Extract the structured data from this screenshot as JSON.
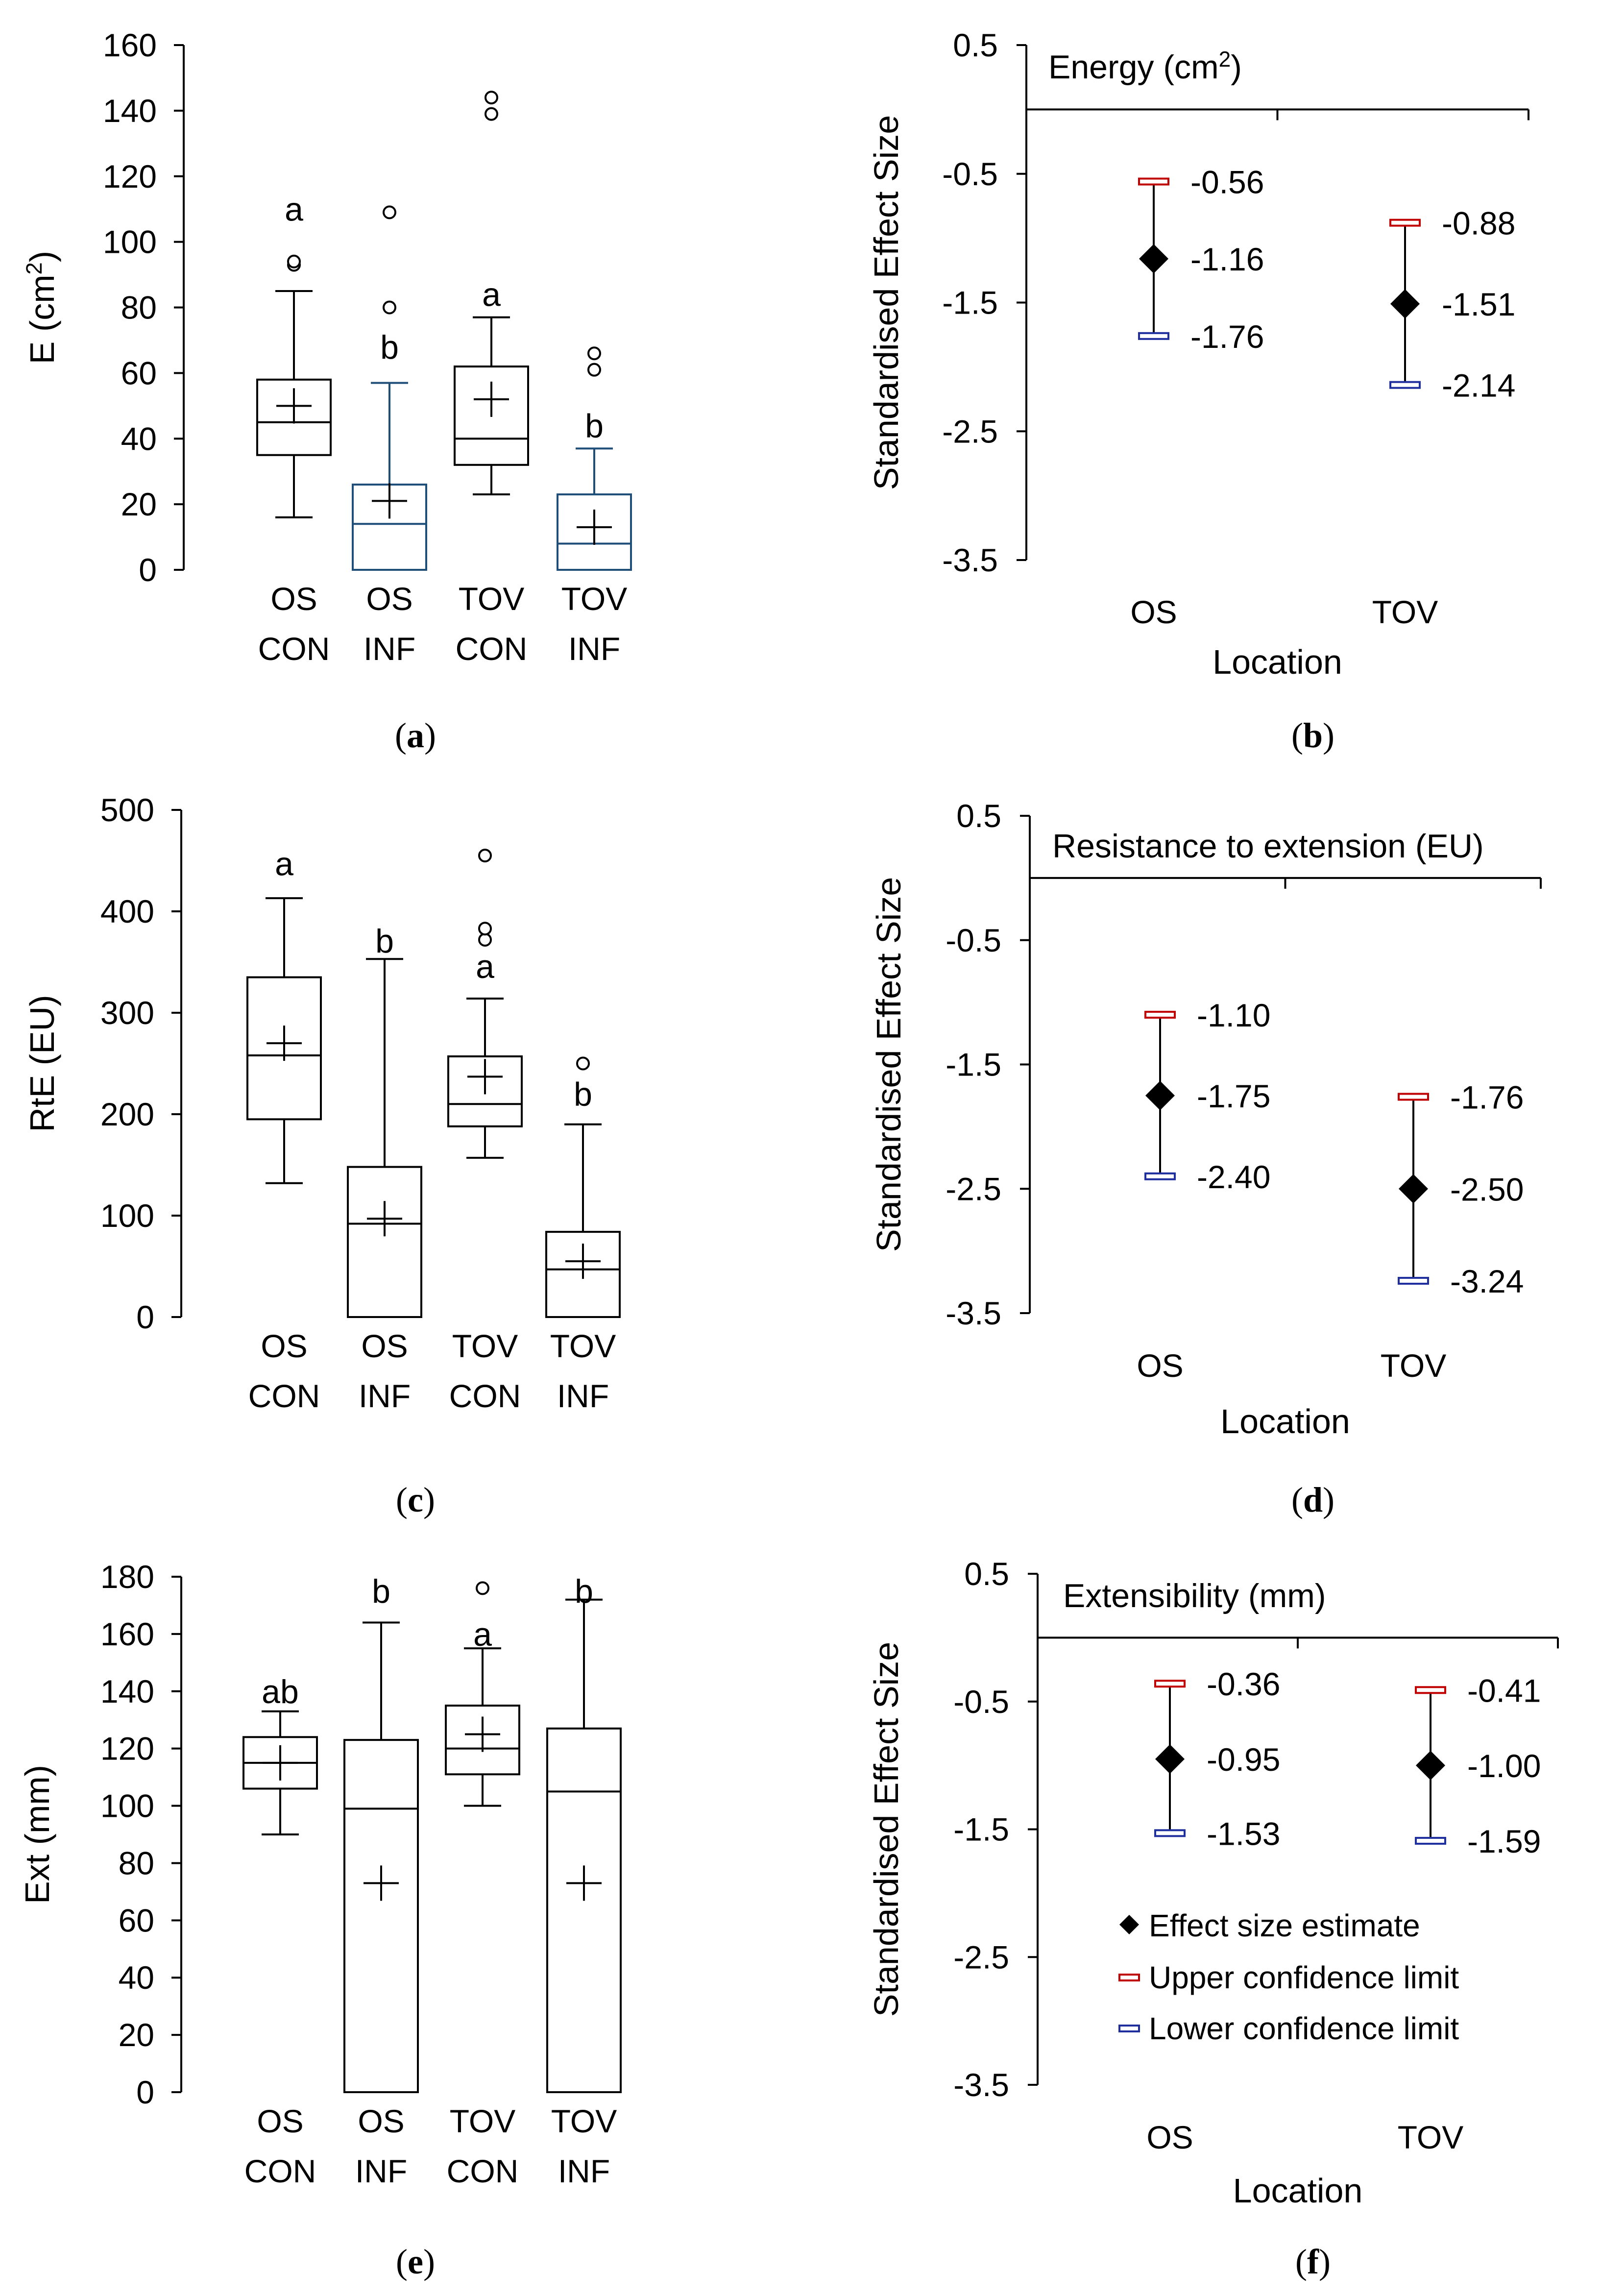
{
  "chart_data": [
    {
      "panel": "a",
      "type": "box",
      "ylabel": "E (cm²)",
      "ylim": [
        0,
        160
      ],
      "yticks": [
        0,
        20,
        40,
        60,
        80,
        100,
        120,
        140,
        160
      ],
      "groups": [
        {
          "line1": "OS",
          "line2": "CON",
          "min": 16,
          "q1": 35,
          "median": 45,
          "q3": 58,
          "max": 85,
          "mean": 50,
          "outliers": [
            93,
            94
          ],
          "letter": "a",
          "letter_y": 110,
          "color": "#000000"
        },
        {
          "line1": "OS",
          "line2": "INF",
          "min": 0,
          "q1": 0,
          "median": 14,
          "q3": 26,
          "max": 57,
          "mean": 21,
          "outliers": [
            80,
            109
          ],
          "letter": "b",
          "letter_y": 68,
          "color": "#1f4e79"
        },
        {
          "line1": "TOV",
          "line2": "CON",
          "min": 23,
          "q1": 32,
          "median": 40,
          "q3": 62,
          "max": 77,
          "mean": 52,
          "outliers": [
            139,
            144
          ],
          "letter": "a",
          "letter_y": 84,
          "color": "#000000"
        },
        {
          "line1": "TOV",
          "line2": "INF",
          "min": 0,
          "q1": 0,
          "median": 8,
          "q3": 23,
          "max": 37,
          "mean": 13,
          "outliers": [
            61,
            66
          ],
          "letter": "b",
          "letter_y": 44,
          "color": "#1f4e79"
        }
      ]
    },
    {
      "panel": "b",
      "type": "effect_size",
      "title": "Energy (cm²)",
      "ylabel": "Standardised Effect Size",
      "xlabel": "Location",
      "ylim": [
        -3.5,
        0.5
      ],
      "yticks": [
        "0.5",
        "-0.5",
        "-1.5",
        "-2.5",
        "-3.5"
      ],
      "points": [
        {
          "location": "OS",
          "estimate": -1.16,
          "upper": -0.56,
          "lower": -1.76,
          "estimate_label": "-1.16",
          "upper_label": "-0.56",
          "lower_label": "-1.76"
        },
        {
          "location": "TOV",
          "estimate": -1.51,
          "upper": -0.88,
          "lower": -2.14,
          "estimate_label": "-1.51",
          "upper_label": "-0.88",
          "lower_label": "-2.14"
        }
      ]
    },
    {
      "panel": "c",
      "type": "box",
      "ylabel": "RtE (EU)",
      "ylim": [
        0,
        500
      ],
      "yticks": [
        0,
        100,
        200,
        300,
        400,
        500
      ],
      "groups": [
        {
          "line1": "OS",
          "line2": "CON",
          "min": 132,
          "q1": 195,
          "median": 258,
          "q3": 335,
          "max": 413,
          "mean": 270,
          "outliers": [],
          "letter": "a",
          "letter_y": 447,
          "color": "#000000"
        },
        {
          "line1": "OS",
          "line2": "INF",
          "min": 0,
          "q1": 0,
          "median": 92,
          "q3": 148,
          "max": 353,
          "mean": 97,
          "outliers": [],
          "letter": "b",
          "letter_y": 371,
          "color": "#000000"
        },
        {
          "line1": "TOV",
          "line2": "CON",
          "min": 157,
          "q1": 188,
          "median": 210,
          "q3": 257,
          "max": 314,
          "mean": 237,
          "outliers": [
            372,
            383,
            455
          ],
          "letter": "a",
          "letter_y": 346,
          "color": "#000000"
        },
        {
          "line1": "TOV",
          "line2": "INF",
          "min": 0,
          "q1": 0,
          "median": 47,
          "q3": 84,
          "max": 190,
          "mean": 55,
          "outliers": [
            250
          ],
          "letter": "b",
          "letter_y": 220,
          "color": "#000000"
        }
      ]
    },
    {
      "panel": "d",
      "type": "effect_size",
      "title": "Resistance to extension (EU)",
      "ylabel": "Standardised Effect Size",
      "xlabel": "Location",
      "ylim": [
        -3.5,
        0.5
      ],
      "yticks": [
        "0.5",
        "-0.5",
        "-1.5",
        "-2.5",
        "-3.5"
      ],
      "points": [
        {
          "location": "OS",
          "estimate": -1.75,
          "upper": -1.1,
          "lower": -2.4,
          "estimate_label": "-1.75",
          "upper_label": "-1.10",
          "lower_label": "-2.40"
        },
        {
          "location": "TOV",
          "estimate": -2.5,
          "upper": -1.76,
          "lower": -3.24,
          "estimate_label": "-2.50",
          "upper_label": "-1.76",
          "lower_label": "-3.24"
        }
      ]
    },
    {
      "panel": "e",
      "type": "box",
      "ylabel": "Ext (mm)",
      "ylim": [
        0,
        180
      ],
      "yticks": [
        0,
        20,
        40,
        60,
        80,
        100,
        120,
        140,
        160,
        180
      ],
      "groups": [
        {
          "line1": "OS",
          "line2": "CON",
          "min": 90,
          "q1": 106,
          "median": 115,
          "q3": 124,
          "max": 133,
          "mean": 115,
          "outliers": [],
          "letter": "ab",
          "letter_y": 140,
          "color": "#000000"
        },
        {
          "line1": "OS",
          "line2": "INF",
          "min": 0,
          "q1": 0,
          "median": 99,
          "q3": 123,
          "max": 164,
          "mean": 73,
          "outliers": [],
          "letter": "b",
          "letter_y": 175,
          "color": "#000000"
        },
        {
          "line1": "TOV",
          "line2": "CON",
          "min": 100,
          "q1": 111,
          "median": 120,
          "q3": 135,
          "max": 155,
          "mean": 125,
          "outliers": [
            176
          ],
          "letter": "a",
          "letter_y": 160,
          "color": "#000000"
        },
        {
          "line1": "TOV",
          "line2": "INF",
          "min": 0,
          "q1": 0,
          "median": 105,
          "q3": 127,
          "max": 172,
          "mean": 73,
          "outliers": [],
          "letter": "b",
          "letter_y": 175,
          "color": "#000000"
        }
      ]
    },
    {
      "panel": "f",
      "type": "effect_size",
      "title": "Extensibility (mm)",
      "ylabel": "Standardised Effect Size",
      "xlabel": "Location",
      "ylim": [
        -3.5,
        0.5
      ],
      "yticks": [
        "0.5",
        "-0.5",
        "-1.5",
        "-2.5",
        "-3.5"
      ],
      "legend": [
        "Effect size estimate",
        "Upper confidence limit",
        "Lower confidence limit"
      ],
      "points": [
        {
          "location": "OS",
          "estimate": -0.95,
          "upper": -0.36,
          "lower": -1.53,
          "estimate_label": "-0.95",
          "upper_label": "-0.36",
          "lower_label": "-1.53"
        },
        {
          "location": "TOV",
          "estimate": -1.0,
          "upper": -0.41,
          "lower": -1.59,
          "estimate_label": "-1.00",
          "upper_label": "-0.41",
          "lower_label": "-1.59"
        }
      ]
    }
  ],
  "panel_labels": [
    "a",
    "b",
    "c",
    "d",
    "e",
    "f"
  ],
  "colors": {
    "upper": "#c00000",
    "lower": "#1f2f9e",
    "box_blue": "#1f4e79",
    "axis": "#000000"
  }
}
